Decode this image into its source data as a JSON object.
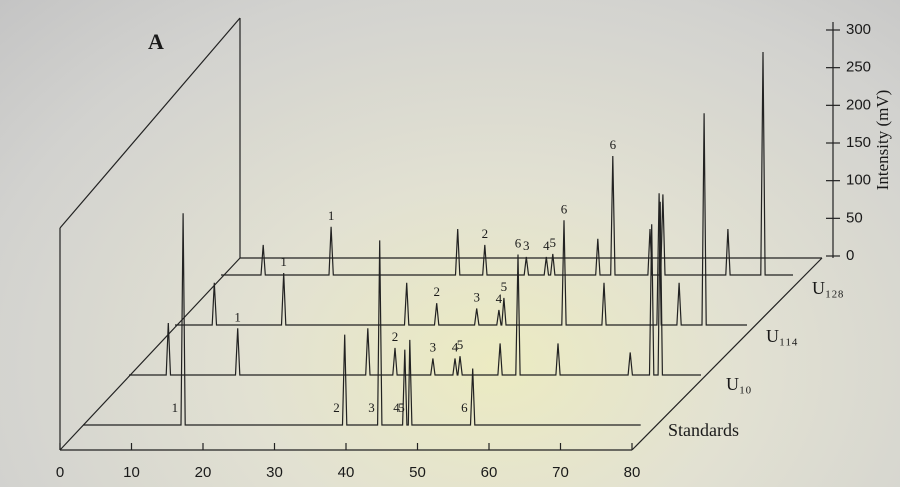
{
  "chart_data": {
    "type": "waterfall-line",
    "panel_label": "A",
    "y_label": "Intensity (mV)",
    "xlim": [
      0,
      80
    ],
    "xticks": [
      0,
      10,
      20,
      30,
      40,
      50,
      60,
      70,
      80
    ],
    "ylim": [
      0,
      300
    ],
    "yticks": [
      0,
      50,
      100,
      150,
      200,
      250,
      300
    ],
    "color": "#222222",
    "series": [
      {
        "name": "Standards",
        "x": [
          0,
          13.7,
          14.0,
          14.3,
          36.3,
          36.6,
          36.9,
          41.2,
          41.5,
          41.8,
          44.7,
          45.0,
          45.3,
          45.5,
          45.7,
          46.0,
          54.2,
          54.5,
          54.8,
          78
        ],
        "values": [
          0,
          0,
          281,
          0,
          0,
          120,
          0,
          0,
          245,
          0,
          0,
          100,
          0,
          0,
          113,
          0,
          0,
          75,
          0,
          0
        ],
        "annotations": [
          {
            "text": "1",
            "x": 14.0
          },
          {
            "text": "2",
            "x": 36.6
          },
          {
            "text": "3",
            "x": 41.5
          },
          {
            "text": "4",
            "x": 45.0
          },
          {
            "text": "5",
            "x": 45.7
          },
          {
            "text": "6",
            "x": 54.5
          }
        ]
      },
      {
        "name": "U₁₀",
        "x": [
          0,
          5.2,
          5.5,
          5.8,
          14.9,
          15.2,
          15.5,
          33.1,
          33.4,
          33.7,
          36.9,
          37.2,
          37.5,
          42.2,
          42.5,
          42.8,
          45.3,
          45.6,
          45.9,
          46.0,
          46.3,
          46.6,
          51.6,
          51.9,
          52.2,
          54.1,
          54.4,
          54.7,
          59.7,
          60.0,
          60.3,
          69.8,
          70.1,
          70.4,
          72.8,
          73.1,
          73.4,
          74.0,
          74.3,
          74.6,
          80
        ],
        "values": [
          0,
          0,
          69,
          0,
          0,
          62,
          0,
          0,
          62,
          0,
          0,
          36,
          0,
          0,
          22,
          0,
          0,
          22,
          0,
          0,
          25,
          0,
          0,
          42,
          0,
          0,
          160,
          0,
          0,
          42,
          0,
          0,
          30,
          0,
          0,
          200,
          0,
          0,
          230,
          0,
          0
        ],
        "annotations": [
          {
            "text": "1",
            "x": 15.2
          },
          {
            "text": "2",
            "x": 37.2
          },
          {
            "text": "3",
            "x": 42.5
          },
          {
            "text": "4",
            "x": 45.6
          },
          {
            "text": "5",
            "x": 46.3
          },
          {
            "text": "6",
            "x": 54.4
          }
        ]
      },
      {
        "name": "U₁₁₄",
        "x": [
          0,
          5.2,
          5.5,
          5.8,
          14.9,
          15.2,
          15.5,
          32.1,
          32.4,
          32.7,
          36.3,
          36.6,
          36.9,
          41.9,
          42.2,
          42.5,
          45.0,
          45.3,
          45.6,
          45.7,
          46.0,
          46.3,
          54.1,
          54.4,
          54.7,
          59.7,
          60.0,
          60.3,
          67.4,
          67.7,
          68.0,
          70.2,
          70.5,
          70.8,
          73.7,
          74.0,
          74.3,
          80
        ],
        "values": [
          0,
          0,
          56,
          0,
          0,
          69,
          0,
          0,
          56,
          0,
          0,
          29,
          0,
          0,
          22,
          0,
          0,
          20,
          0,
          0,
          36,
          0,
          0,
          139,
          0,
          0,
          56,
          0,
          0,
          175,
          0,
          0,
          56,
          0,
          0,
          281,
          0,
          0
        ],
        "annotations": [
          {
            "text": "1",
            "x": 15.2
          },
          {
            "text": "2",
            "x": 36.6
          },
          {
            "text": "3",
            "x": 42.2
          },
          {
            "text": "4",
            "x": 45.3
          },
          {
            "text": "5",
            "x": 46.0
          },
          {
            "text": "6",
            "x": 54.4
          }
        ]
      },
      {
        "name": "U₁₂₈",
        "x": [
          0,
          5.6,
          5.9,
          6.2,
          15.1,
          15.4,
          15.7,
          32.8,
          33.1,
          33.4,
          36.6,
          36.9,
          37.2,
          42.4,
          42.7,
          43.0,
          45.2,
          45.5,
          45.8,
          46.1,
          46.4,
          46.7,
          52.4,
          52.7,
          53.0,
          54.5,
          54.8,
          55.1,
          59.7,
          60.0,
          60.3,
          61.5,
          61.8,
          62.1,
          70.6,
          70.9,
          71.2,
          75.5,
          75.8,
          76.1,
          80
        ],
        "values": [
          0,
          0,
          40,
          0,
          0,
          64,
          0,
          0,
          61,
          0,
          0,
          40,
          0,
          0,
          24,
          0,
          0,
          24,
          0,
          0,
          28,
          0,
          0,
          48,
          0,
          0,
          158,
          0,
          0,
          61,
          0,
          0,
          107,
          0,
          0,
          61,
          0,
          0,
          296,
          0,
          0
        ],
        "annotations": [
          {
            "text": "1",
            "x": 15.4
          },
          {
            "text": "2",
            "x": 36.9
          },
          {
            "text": "3",
            "x": 42.7
          },
          {
            "text": "4",
            "x": 45.5
          },
          {
            "text": "5",
            "x": 46.4
          },
          {
            "text": "6",
            "x": 54.8
          }
        ]
      }
    ]
  }
}
